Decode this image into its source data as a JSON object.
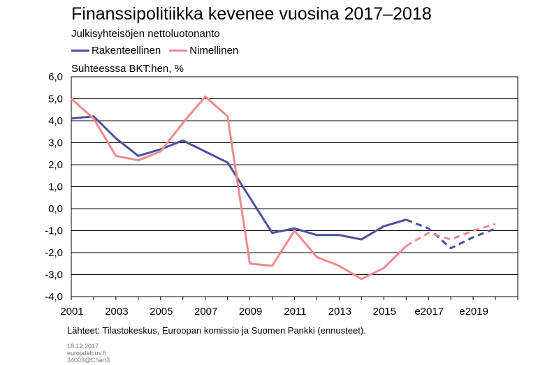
{
  "header": {
    "title": "Finanssipolitiikka kevenee vuosina 2017–2018",
    "subtitle": "Julkisyhteisöjen nettoluotonanto",
    "ylabel": "Suhteesssa BKT:hen, %"
  },
  "legend": {
    "items": [
      {
        "label": "Rakenteellinen",
        "color": "#4a4f9e"
      },
      {
        "label": "Nimellinen",
        "color": "#f0898a"
      }
    ]
  },
  "footer": {
    "source": "Lähteet: Tilastokeskus, Euroopan komissio ja Suomen Pankki (ennusteet).",
    "date": "18.12.2017",
    "site": "eurojatalous.fi",
    "chart_id": "34003@Chart3"
  },
  "chart_data": {
    "type": "line",
    "x": [
      2001,
      2002,
      2003,
      2004,
      2005,
      2006,
      2007,
      2008,
      2009,
      2010,
      2011,
      2012,
      2013,
      2014,
      2015,
      2016,
      2017,
      2018,
      2019,
      2020
    ],
    "x_tick_labels": [
      {
        "x": 2001,
        "label": "2001"
      },
      {
        "x": 2003,
        "label": "2003"
      },
      {
        "x": 2005,
        "label": "2005"
      },
      {
        "x": 2007,
        "label": "2007"
      },
      {
        "x": 2009,
        "label": "2009"
      },
      {
        "x": 2011,
        "label": "2011"
      },
      {
        "x": 2013,
        "label": "2013"
      },
      {
        "x": 2015,
        "label": "2015"
      },
      {
        "x": 2017,
        "label": "e2017"
      },
      {
        "x": 2019,
        "label": "e2019"
      }
    ],
    "y_tick_labels": [
      "-4,0",
      "-3,0",
      "-2,0",
      "-1,0",
      "0,0",
      "1,0",
      "2,0",
      "3,0",
      "4,0",
      "5,0",
      "6,0"
    ],
    "y_ticks": [
      -4,
      -3,
      -2,
      -1,
      0,
      1,
      2,
      3,
      4,
      5,
      6
    ],
    "ylim": [
      -4,
      6
    ],
    "xlim": [
      2001,
      2021
    ],
    "grid": true,
    "forecast_from": 2016,
    "series": [
      {
        "name": "Rakenteellinen",
        "color": "#4a4f9e",
        "values": [
          4.1,
          4.2,
          3.2,
          2.4,
          2.7,
          3.1,
          2.6,
          2.1,
          0.5,
          -1.1,
          -0.9,
          -1.2,
          -1.2,
          -1.4,
          -0.8,
          -0.5,
          -0.9,
          -1.8,
          -1.3,
          -0.9
        ]
      },
      {
        "name": "Nimellinen",
        "color": "#f0898a",
        "values": [
          5.0,
          4.1,
          2.4,
          2.2,
          2.6,
          3.9,
          5.1,
          4.2,
          -2.5,
          -2.6,
          -1.0,
          -2.2,
          -2.6,
          -3.2,
          -2.7,
          -1.7,
          -1.1,
          -1.4,
          -1.0,
          -0.7
        ]
      }
    ],
    "legend_position": "top-left"
  }
}
